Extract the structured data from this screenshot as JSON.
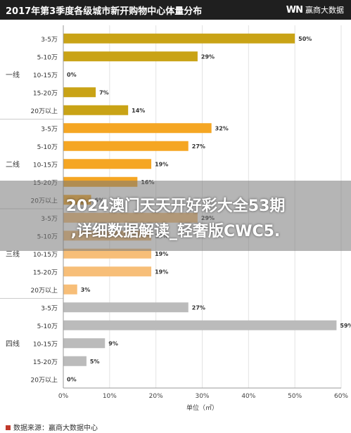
{
  "header": {
    "title": "2017年第3季度各级城市新开购物中心体量分布",
    "brand_logo": "WN",
    "brand_name": "赢商大数据"
  },
  "footer": {
    "source": "数据来源：赢商大数据中心"
  },
  "overlay": {
    "line1": "2024澳门天天开好彩大全53期",
    "line2": ",详细数据解读_轻奢版CWC5."
  },
  "colors": {
    "tier1": "#C9A316",
    "tier2": "#F5A623",
    "tier3": "#F7BE78",
    "tier4": "#BBBBBB"
  },
  "chart_data": {
    "type": "bar",
    "orientation": "horizontal",
    "title": "2017年第3季度各级城市新开购物中心体量分布",
    "xlabel": "单位（㎡）",
    "xlim": [
      0,
      60
    ],
    "xticks": [
      "0%",
      "10%",
      "20%",
      "30%",
      "40%",
      "50%",
      "60%"
    ],
    "grid": true,
    "groups": [
      {
        "name": "一线",
        "color_key": "tier1",
        "categories": [
          "3-5万",
          "5-10万",
          "10-15万",
          "15-20万",
          "20万以上"
        ],
        "values": [
          50,
          29,
          0,
          7,
          14
        ],
        "labels": [
          "50%",
          "29%",
          "0%",
          "7%",
          "14%"
        ]
      },
      {
        "name": "二线",
        "color_key": "tier2",
        "categories": [
          "3-5万",
          "5-10万",
          "10-15万",
          "15-20万",
          "20万以上"
        ],
        "values": [
          32,
          27,
          19,
          16,
          6
        ],
        "labels": [
          "32%",
          "27%",
          "19%",
          "16%",
          "6%"
        ]
      },
      {
        "name": "三线",
        "color_key": "tier3",
        "categories": [
          "3-5万",
          "5-10万",
          "10-15万",
          "15-20万",
          "20万以上"
        ],
        "values": [
          29,
          19,
          19,
          19,
          3
        ],
        "labels": [
          "29%",
          "19%",
          "19%",
          "19%",
          "3%"
        ]
      },
      {
        "name": "四线",
        "color_key": "tier4",
        "categories": [
          "3-5万",
          "5-10万",
          "10-15万",
          "15-20万",
          "20万以上"
        ],
        "values": [
          27,
          59,
          9,
          5,
          0
        ],
        "labels": [
          "27%",
          "59%",
          "9%",
          "5%",
          "0%"
        ]
      }
    ]
  }
}
